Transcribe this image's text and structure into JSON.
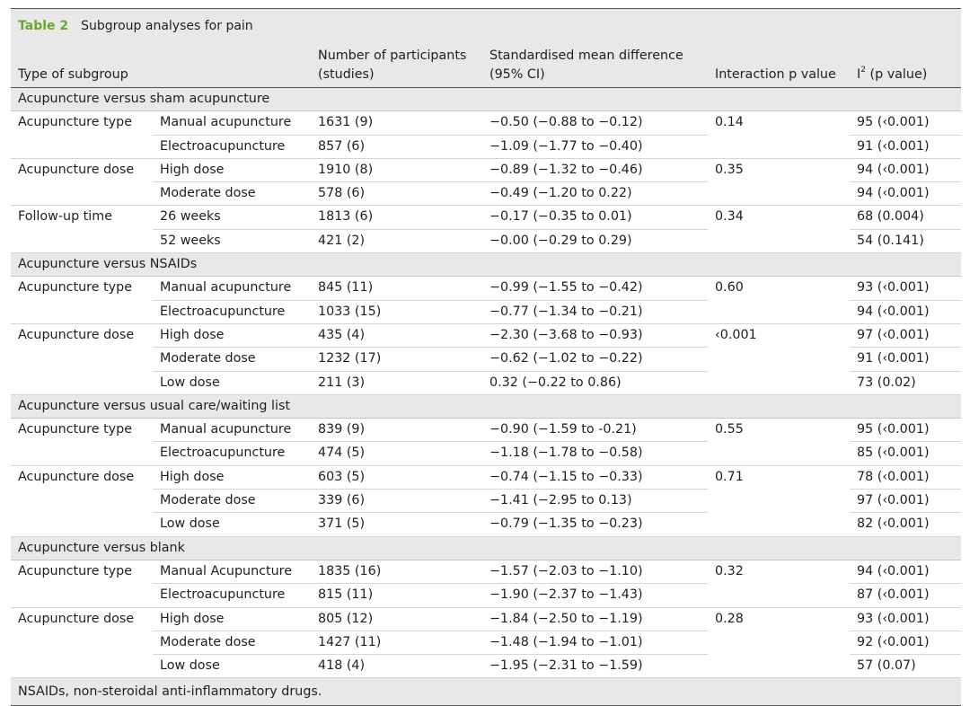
{
  "caption": {
    "number": "Table 2",
    "title": "Subgroup analyses for pain"
  },
  "headers": {
    "type": "Type of subgroup",
    "participants_1": "Number of participants",
    "participants_2": "(studies)",
    "smd_1": "Standardised mean difference",
    "smd_2": "(95% CI)",
    "interaction": "Interaction p value",
    "i2_sup": "2",
    "i2_rest": "(p value)",
    "i2_letter": "I"
  },
  "groups": [
    {
      "title": "Acupuncture versus sham acupuncture",
      "subgroups": [
        {
          "type": "Acupuncture type",
          "p": "0.14",
          "rows": [
            {
              "name": "Manual acupuncture",
              "n": "1631 (9)",
              "smd": "−0.50 (−0.88 to −0.12)",
              "i2": "95 (‹0.001)"
            },
            {
              "name": "Electroacupuncture",
              "n": "857 (6)",
              "smd": "−1.09 (−1.77 to −0.40)",
              "i2": "91 (‹0.001)"
            }
          ]
        },
        {
          "type": "Acupuncture dose",
          "p": "0.35",
          "rows": [
            {
              "name": "High dose",
              "n": "1910 (8)",
              "smd": "−0.89 (−1.32 to −0.46)",
              "i2": "94 (‹0.001)"
            },
            {
              "name": "Moderate dose",
              "n": "578 (6)",
              "smd": "−0.49 (−1.20 to 0.22)",
              "i2": "94 (‹0.001)"
            }
          ]
        },
        {
          "type": "Follow-up time",
          "p": "0.34",
          "rows": [
            {
              "name": "26 weeks",
              "n": "1813 (6)",
              "smd": "−0.17 (−0.35 to 0.01)",
              "i2": "68 (0.004)"
            },
            {
              "name": "52 weeks",
              "n": "421 (2)",
              "smd": "−0.00 (−0.29 to 0.29)",
              "i2": "54 (0.141)"
            }
          ]
        }
      ]
    },
    {
      "title": "Acupuncture versus NSAIDs",
      "subgroups": [
        {
          "type": "Acupuncture type",
          "p": "0.60",
          "rows": [
            {
              "name": "Manual acupuncture",
              "n": "845 (11)",
              "smd": "−0.99 (−1.55 to −0.42)",
              "i2": "93 (‹0.001)"
            },
            {
              "name": "Electroacupuncture",
              "n": "1033 (15)",
              "smd": "−0.77 (−1.34 to −0.21)",
              "i2": "94 (‹0.001)"
            }
          ]
        },
        {
          "type": "Acupuncture dose",
          "p": "‹0.001",
          "rows": [
            {
              "name": "High dose",
              "n": "435 (4)",
              "smd": "−2.30 (−3.68 to −0.93)",
              "i2": "97 (‹0.001)"
            },
            {
              "name": "Moderate dose",
              "n": "1232 (17)",
              "smd": "−0.62 (−1.02 to −0.22)",
              "i2": "91 (‹0.001)"
            },
            {
              "name": "Low dose",
              "n": "211 (3)",
              "smd": "0.32 (−0.22 to 0.86)",
              "i2": "73 (0.02)"
            }
          ]
        }
      ]
    },
    {
      "title": "Acupuncture versus usual care/waiting list",
      "subgroups": [
        {
          "type": "Acupuncture type",
          "p": "0.55",
          "rows": [
            {
              "name": "Manual acupuncture",
              "n": "839 (9)",
              "smd": "−0.90 (−1.59 to -0.21)",
              "i2": "95 (‹0.001)"
            },
            {
              "name": "Electroacupuncture",
              "n": "474 (5)",
              "smd": "−1.18 (−1.78 to −0.58)",
              "i2": "85 (‹0.001)"
            }
          ]
        },
        {
          "type": "Acupuncture dose",
          "p": "0.71",
          "rows": [
            {
              "name": "High dose",
              "n": "603 (5)",
              "smd": "−0.74 (−1.15 to −0.33)",
              "i2": "78 (‹0.001)"
            },
            {
              "name": "Moderate dose",
              "n": "339 (6)",
              "smd": "−1.41 (−2.95 to 0.13)",
              "i2": "97 (‹0.001)"
            },
            {
              "name": "Low dose",
              "n": "371 (5)",
              "smd": "−0.79 (−1.35 to −0.23)",
              "i2": "82 (‹0.001)"
            }
          ]
        }
      ]
    },
    {
      "title": "Acupuncture versus blank",
      "subgroups": [
        {
          "type": "Acupuncture type",
          "p": "0.32",
          "rows": [
            {
              "name": "Manual Acupuncture",
              "n": "1835 (16)",
              "smd": "−1.57 (−2.03 to −1.10)",
              "i2": "94 (‹0.001)"
            },
            {
              "name": "Electroacupuncture",
              "n": "815 (11)",
              "smd": "−1.90 (−2.37 to −1.43)",
              "i2": "87 (‹0.001)"
            }
          ]
        },
        {
          "type": "Acupuncture dose",
          "p": "0.28",
          "rows": [
            {
              "name": "High dose",
              "n": "805 (12)",
              "smd": "−1.84 (−2.50 to −1.19)",
              "i2": "93 (‹0.001)"
            },
            {
              "name": "Moderate dose",
              "n": "1427 (11)",
              "smd": "−1.48 (−1.94 to −1.01)",
              "i2": "92 (‹0.001)"
            },
            {
              "name": "Low dose",
              "n": "418 (4)",
              "smd": "−1.95 (−2.31 to −1.59)",
              "i2": "57 (0.07)"
            }
          ]
        }
      ]
    }
  ],
  "footnote": "NSAIDs, non-steroidal anti-inflammatory drugs."
}
